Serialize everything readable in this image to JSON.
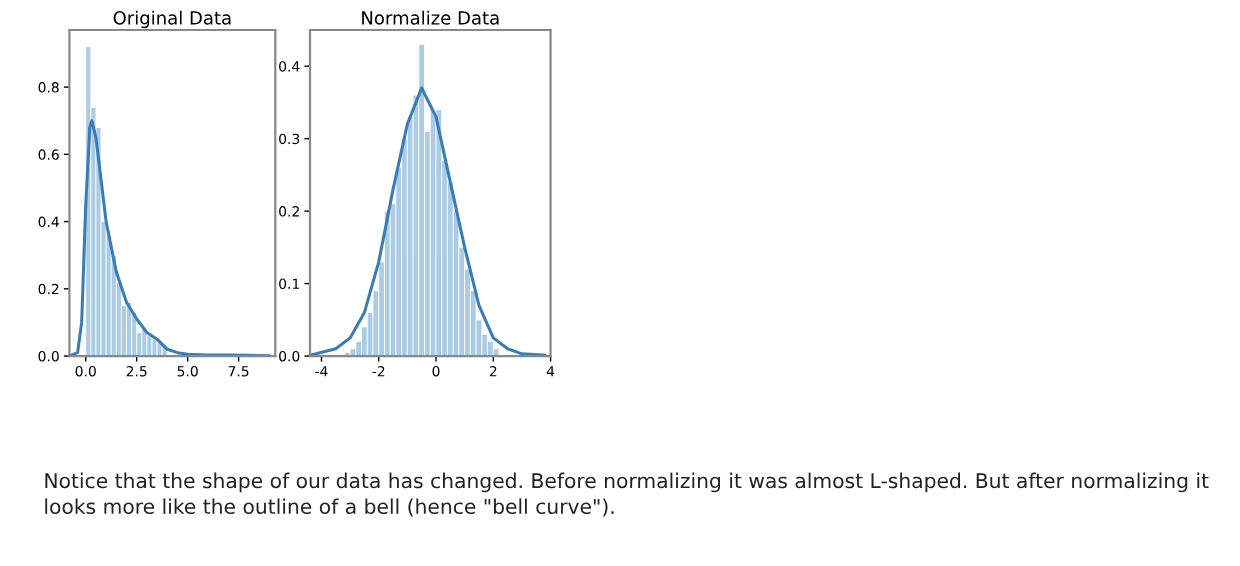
{
  "chart_data": [
    {
      "type": "histogram",
      "title": "Original Data",
      "bins": [
        0,
        0.25,
        0.5,
        0.75,
        1.0,
        1.25,
        1.5,
        1.75,
        2.0,
        2.25,
        2.5,
        2.75,
        3.0,
        3.25,
        3.5,
        3.75,
        4.0,
        5.5,
        6.5,
        7.5,
        8.5,
        9.0
      ],
      "values": [
        0.92,
        0.74,
        0.68,
        0.4,
        0.36,
        0.3,
        0.22,
        0.15,
        0.16,
        0.13,
        0.07,
        0.08,
        0.06,
        0.05,
        0.04,
        0.03,
        null,
        0.004,
        0.003,
        0.003,
        0.002
      ],
      "color": "#9dc3e0",
      "series": [
        {
          "type": "line",
          "color": "#3a7db6",
          "x": [
            -0.8,
            -0.4,
            -0.2,
            0,
            0.2,
            0.3,
            0.5,
            0.8,
            1.0,
            1.5,
            2.0,
            2.5,
            3.0,
            3.5,
            4.0,
            4.5,
            5.0,
            6,
            7,
            8,
            9
          ],
          "values": [
            0,
            0.01,
            0.1,
            0.45,
            0.68,
            0.7,
            0.65,
            0.5,
            0.4,
            0.25,
            0.16,
            0.11,
            0.07,
            0.05,
            0.02,
            0.01,
            0.005,
            0.003,
            0.003,
            0.002,
            0.001
          ]
        }
      ],
      "xlim": [
        -0.8,
        9.3
      ],
      "xticks": [
        {
          "value": 0,
          "label": "0.0"
        },
        2.5,
        {
          "value": 5,
          "label": "5.0"
        },
        7.5
      ],
      "ylim": [
        0,
        0.97
      ],
      "yticks": [
        {
          "value": 0,
          "label": "0.0"
        },
        0.2,
        0.4,
        0.6,
        0.8
      ],
      "grid": false,
      "legend": false
    },
    {
      "type": "histogram",
      "title": "Normalize Data",
      "bins": [
        -3.2,
        -3.0,
        -2.8,
        -2.6,
        -2.4,
        -2.2,
        -2.0,
        -1.8,
        -1.6,
        -1.4,
        -1.2,
        -1.0,
        -0.8,
        -0.6,
        -0.4,
        -0.2,
        0.0,
        0.2,
        0.4,
        0.6,
        0.8,
        1.0,
        1.2,
        1.4,
        1.6,
        1.8,
        2.0,
        2.2
      ],
      "values": [
        0.005,
        0.01,
        0.02,
        0.04,
        0.06,
        0.09,
        0.13,
        0.2,
        0.21,
        0.26,
        0.3,
        0.33,
        0.36,
        0.43,
        0.31,
        0.34,
        0.34,
        0.27,
        0.24,
        0.2,
        0.15,
        0.12,
        0.09,
        0.05,
        0.03,
        0.02,
        0.01
      ],
      "color": "#9dc3e0",
      "series": [
        {
          "type": "line",
          "color": "#3a7db6",
          "x": [
            -4.4,
            -3.5,
            -3,
            -2.5,
            -2,
            -1.5,
            -1,
            -0.5,
            0,
            0.5,
            1,
            1.5,
            2,
            2.5,
            3,
            3.8
          ],
          "values": [
            0.001,
            0.01,
            0.025,
            0.06,
            0.13,
            0.23,
            0.32,
            0.37,
            0.33,
            0.24,
            0.15,
            0.07,
            0.025,
            0.01,
            0.003,
            0.001
          ]
        }
      ],
      "xlim": [
        -4.4,
        4.0
      ],
      "xticks": [
        -4,
        -2,
        0,
        2,
        4
      ],
      "ylim": [
        0,
        0.45
      ],
      "yticks": [
        {
          "value": 0,
          "label": "0.0"
        },
        0.1,
        0.2,
        0.3,
        0.4
      ],
      "grid": false,
      "legend": false,
      "annotations": [
        "Notice that the shape of our data has changed. Before normalizing it was almost L-shaped. But after normalizing it looks more like the outline of a bell (hence \"bell curve\")."
      ]
    }
  ]
}
